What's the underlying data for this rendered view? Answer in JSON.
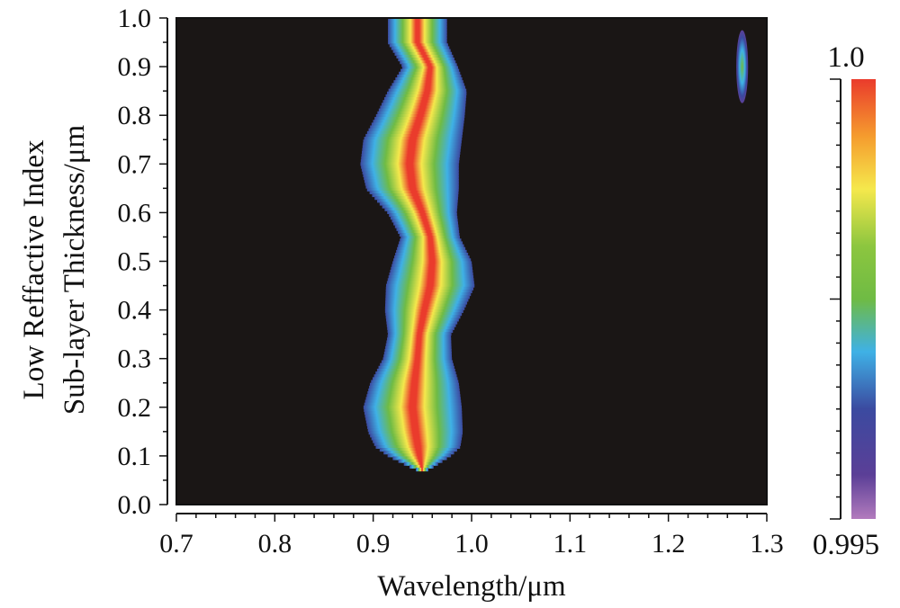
{
  "chart_data": {
    "type": "heatmap",
    "xlabel": "Wavelength/μm",
    "ylabel_line1": "Low Reffactive Index",
    "ylabel_line2": "Sub-layer Thickness/μm",
    "xlim": [
      0.7,
      1.3
    ],
    "ylim": [
      0.0,
      1.0
    ],
    "x_ticks": [
      "0.7",
      "0.8",
      "0.9",
      "1.0",
      "1.1",
      "1.2",
      "1.3"
    ],
    "y_ticks": [
      "0.0",
      "0.1",
      "0.2",
      "0.3",
      "0.4",
      "0.5",
      "0.6",
      "0.7",
      "0.8",
      "0.9",
      "1.0"
    ],
    "background_color": "#1a1615",
    "colorbar": {
      "min": 0.995,
      "max": 1.0,
      "min_label": "0.995",
      "max_label": "1.0",
      "colors": [
        "#b27bbd",
        "#5b3f97",
        "#3b4aa0",
        "#3fb1e6",
        "#6fbb44",
        "#8cc63f",
        "#f5e84c",
        "#f59c2e",
        "#ea3b2c"
      ]
    },
    "high_band": {
      "description_points": [
        {
          "y": 1.0,
          "x_center": 0.945,
          "half_width": 0.03
        },
        {
          "y": 0.95,
          "x_center": 0.945,
          "half_width": 0.03
        },
        {
          "y": 0.9,
          "x_center": 0.958,
          "half_width": 0.028
        },
        {
          "y": 0.85,
          "x_center": 0.955,
          "half_width": 0.04
        },
        {
          "y": 0.8,
          "x_center": 0.948,
          "half_width": 0.045
        },
        {
          "y": 0.75,
          "x_center": 0.94,
          "half_width": 0.05
        },
        {
          "y": 0.7,
          "x_center": 0.937,
          "half_width": 0.05
        },
        {
          "y": 0.65,
          "x_center": 0.94,
          "half_width": 0.047
        },
        {
          "y": 0.6,
          "x_center": 0.95,
          "half_width": 0.035
        },
        {
          "y": 0.55,
          "x_center": 0.958,
          "half_width": 0.03
        },
        {
          "y": 0.5,
          "x_center": 0.96,
          "half_width": 0.04
        },
        {
          "y": 0.45,
          "x_center": 0.958,
          "half_width": 0.045
        },
        {
          "y": 0.4,
          "x_center": 0.952,
          "half_width": 0.04
        },
        {
          "y": 0.35,
          "x_center": 0.947,
          "half_width": 0.032
        },
        {
          "y": 0.3,
          "x_center": 0.945,
          "half_width": 0.035
        },
        {
          "y": 0.25,
          "x_center": 0.942,
          "half_width": 0.045
        },
        {
          "y": 0.2,
          "x_center": 0.94,
          "half_width": 0.05
        },
        {
          "y": 0.15,
          "x_center": 0.943,
          "half_width": 0.048
        },
        {
          "y": 0.1,
          "x_center": 0.947,
          "half_width": 0.04
        },
        {
          "y": 0.07,
          "x_center": 0.95,
          "half_width": 0.025
        }
      ],
      "spot": {
        "x": 1.275,
        "y": 0.9,
        "half_width": 0.006,
        "half_height": 0.075
      }
    }
  }
}
